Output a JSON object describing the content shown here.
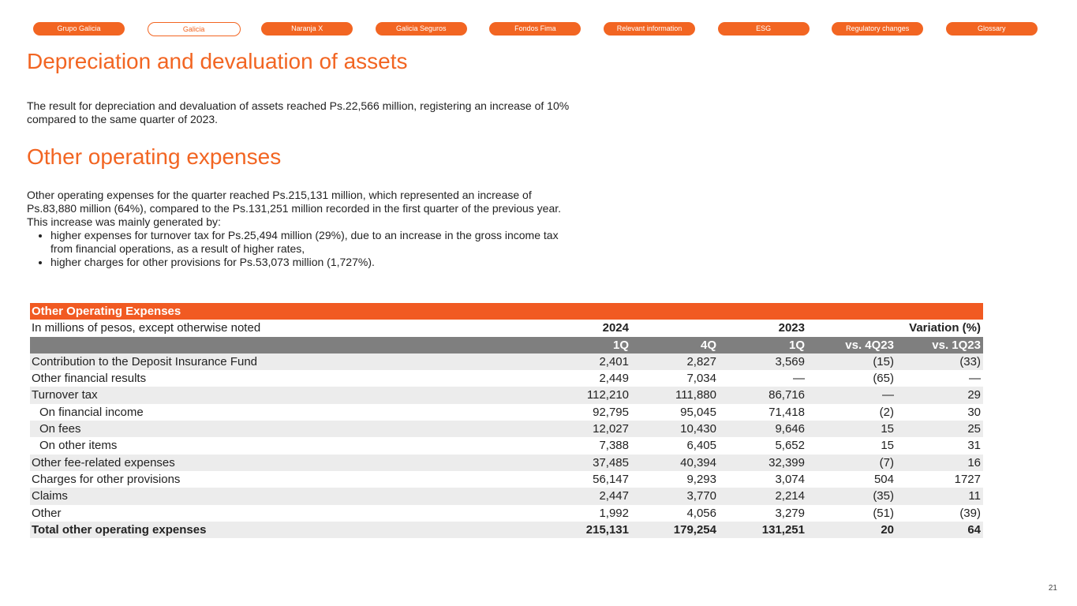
{
  "nav": [
    "Grupo Galicia",
    "Galicia",
    "Naranja X",
    "Galicia Seguros",
    "Fondos Fima",
    "Relevant information",
    "ESG",
    "Regulatory changes",
    "Glossary"
  ],
  "section1": {
    "title": "Depreciation and devaluation of assets",
    "text": "The result for depreciation and devaluation of assets reached Ps.22,566 million, registering an increase of 10% compared to the same quarter of 2023."
  },
  "section2": {
    "title": "Other operating expenses",
    "text": "Other operating expenses for the quarter reached Ps.215,131 million, which represented an increase of Ps.83,880 million (64%), compared to the Ps.131,251 million recorded in the first quarter of the previous year. This increase was mainly generated by:",
    "bullets": [
      "higher expenses for turnover tax for Ps.25,494 million (29%), due to an increase in the gross income tax from financial operations, as a result of higher rates,",
      "higher charges for other provisions for Ps.53,073 million (1,727%)."
    ]
  },
  "table": {
    "title": "Other Operating Expenses",
    "subheader": {
      "label": "In millions of pesos, except otherwise noted",
      "year_a": "2024",
      "year_b": "2023",
      "variation": "Variation (%)"
    },
    "columns": [
      "1Q",
      "4Q",
      "1Q",
      "vs. 4Q23",
      "vs. 1Q23"
    ],
    "rows": [
      [
        "Contribution to the Deposit Insurance Fund",
        "2,401",
        "2,827",
        "3,569",
        "(15)",
        "(33)"
      ],
      [
        "Other financial results",
        "2,449",
        "7,034",
        "—",
        "(65)",
        "—"
      ],
      [
        "Turnover tax",
        "112,210",
        "111,880",
        "86,716",
        "—",
        "29"
      ],
      [
        "On financial income",
        "92,795",
        "95,045",
        "71,418",
        "(2)",
        "30"
      ],
      [
        "On fees",
        "12,027",
        "10,430",
        "9,646",
        "15",
        "25"
      ],
      [
        "On other items",
        "7,388",
        "6,405",
        "5,652",
        "15",
        "31"
      ],
      [
        "Other fee-related expenses",
        "37,485",
        "40,394",
        "32,399",
        "(7)",
        "16"
      ],
      [
        "Charges for other provisions",
        "56,147",
        "9,293",
        "3,074",
        "504",
        "1727"
      ],
      [
        "Claims",
        "2,447",
        "3,770",
        "2,214",
        "(35)",
        "11"
      ],
      [
        "Other",
        "1,992",
        "4,056",
        "3,279",
        "(51)",
        "(39)"
      ],
      [
        "Total other operating expenses",
        "215,131",
        "179,254",
        "131,251",
        "20",
        "64"
      ]
    ]
  },
  "page_number": "21"
}
